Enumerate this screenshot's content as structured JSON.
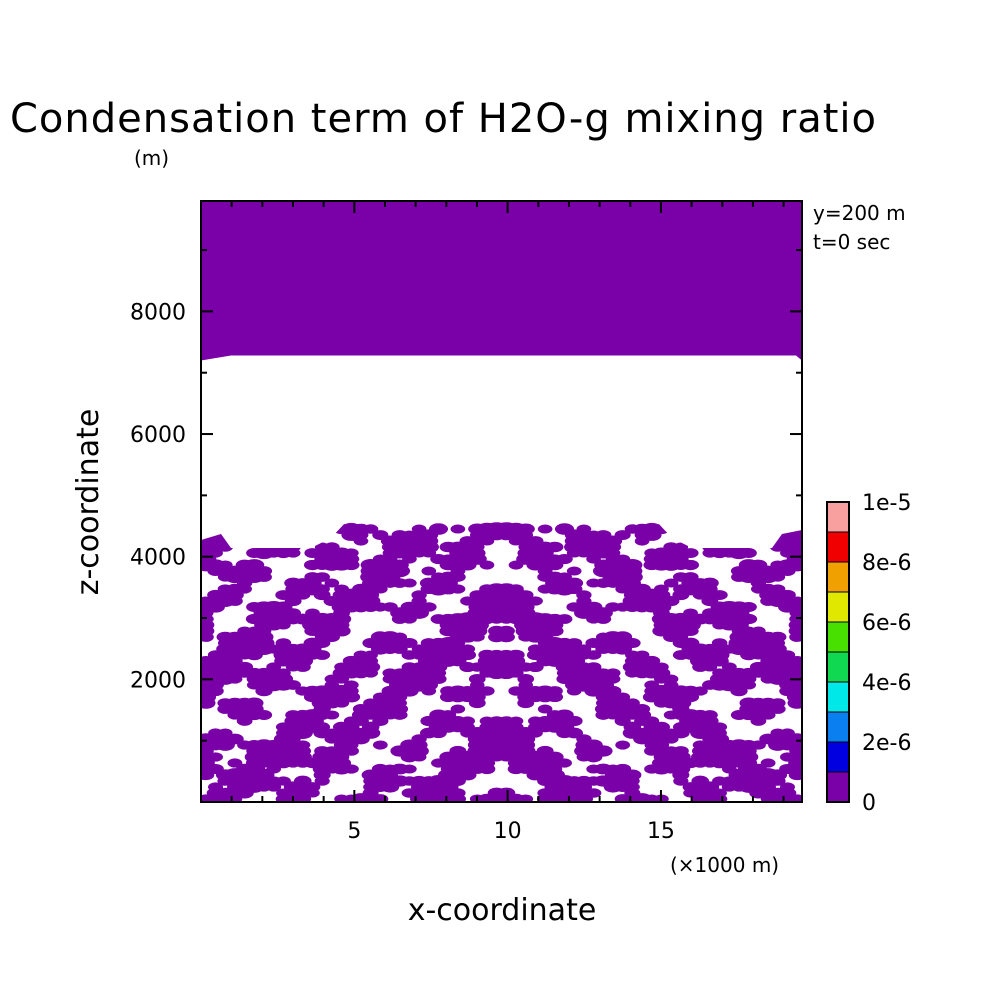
{
  "chart_data": {
    "type": "heatmap",
    "title": "Condensation term of H2O-g mixing ratio",
    "xlabel": "x-coordinate",
    "ylabel": "z-coordinate",
    "x_unit": "(×1000 m)",
    "y_unit": "(m)",
    "xlim": [
      0,
      19.6
    ],
    "ylim": [
      0,
      9800
    ],
    "xticks": [
      "5",
      "10",
      "15"
    ],
    "xtick_values": [
      5,
      10,
      15
    ],
    "yticks": [
      "2000",
      "4000",
      "6000",
      "8000"
    ],
    "ytick_values": [
      2000,
      4000,
      6000,
      8000
    ],
    "annotations": [
      "y=200 m",
      "t=0 sec"
    ],
    "colorbar": {
      "labels": [
        "0",
        "2e-6",
        "4e-6",
        "6e-6",
        "8e-6",
        "1e-5"
      ],
      "label_values": [
        0,
        2e-06,
        4e-06,
        6e-06,
        8e-06,
        1e-05
      ],
      "levels": [
        0,
        1e-06,
        2e-06,
        3e-06,
        4e-06,
        5e-06,
        6e-06,
        7e-06,
        8e-06,
        9e-06,
        1e-05
      ],
      "colors": [
        "#7a00a8",
        "#0000e0",
        "#0a80f0",
        "#00e8e8",
        "#10d850",
        "#48e000",
        "#e0e800",
        "#f0a000",
        "#f00000",
        "#f8a0a0"
      ]
    },
    "regions": [
      {
        "z_range": [
          7200,
          9800
        ],
        "level": "0",
        "pattern": "solid"
      },
      {
        "z_range": [
          4500,
          7200
        ],
        "level": "none",
        "pattern": "blank"
      },
      {
        "z_range": [
          0,
          4500
        ],
        "level": "0",
        "pattern": "patchy"
      }
    ],
    "fill_color": "#7a00a8"
  }
}
